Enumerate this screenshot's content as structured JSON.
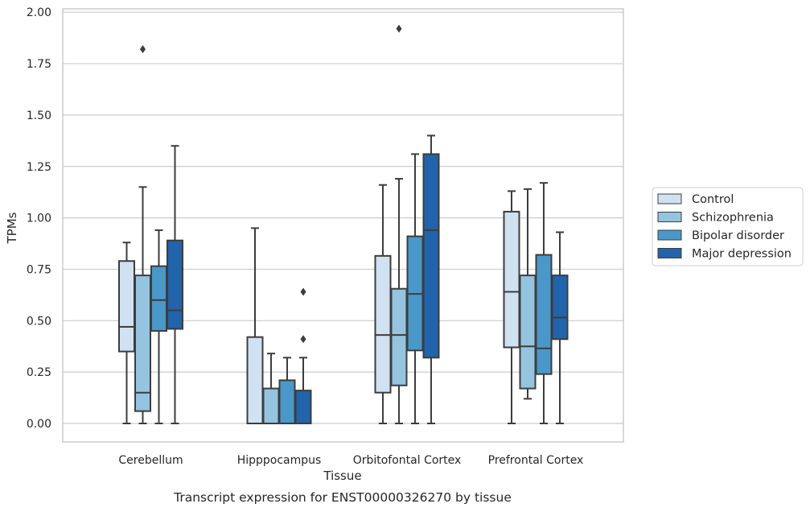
{
  "chart_data": {
    "type": "box",
    "xlabel": "Tissue",
    "ylabel": "TPMs",
    "caption": "Transcript expression for ENST00000326270 by tissue",
    "ylim": [
      -0.09,
      2.02
    ],
    "yticks": [
      "0.00",
      "0.25",
      "0.50",
      "0.75",
      "1.00",
      "1.25",
      "1.50",
      "1.75",
      "2.00"
    ],
    "grid": true,
    "legend_position": "right",
    "categories": [
      "Cerebellum",
      "Hipppocampus",
      "Orbitofontal Cortex",
      "Prefrontal Cortex"
    ],
    "series": [
      {
        "name": "Control",
        "color": "#d0e1f2",
        "boxes": [
          {
            "whislo": 0.0,
            "q1": 0.35,
            "med": 0.47,
            "q3": 0.79,
            "whishi": 0.88,
            "fliers": []
          },
          {
            "whislo": 0.0,
            "q1": 0.0,
            "med": 0.0,
            "q3": 0.42,
            "whishi": 0.95,
            "fliers": []
          },
          {
            "whislo": 0.0,
            "q1": 0.15,
            "med": 0.43,
            "q3": 0.815,
            "whishi": 1.16,
            "fliers": []
          },
          {
            "whislo": 0.0,
            "q1": 0.37,
            "med": 0.64,
            "q3": 1.03,
            "whishi": 1.13,
            "fliers": []
          }
        ]
      },
      {
        "name": "Schizophrenia",
        "color": "#94c4df",
        "boxes": [
          {
            "whislo": 0.0,
            "q1": 0.06,
            "med": 0.15,
            "q3": 0.72,
            "whishi": 1.15,
            "fliers": [
              1.82
            ]
          },
          {
            "whislo": 0.0,
            "q1": 0.0,
            "med": 0.0,
            "q3": 0.17,
            "whishi": 0.34,
            "fliers": []
          },
          {
            "whislo": 0.0,
            "q1": 0.185,
            "med": 0.43,
            "q3": 0.655,
            "whishi": 1.19,
            "fliers": [
              1.92
            ]
          },
          {
            "whislo": 0.12,
            "q1": 0.17,
            "med": 0.375,
            "q3": 0.72,
            "whishi": 1.14,
            "fliers": []
          }
        ]
      },
      {
        "name": "Bipolar disorder",
        "color": "#4a98c9",
        "boxes": [
          {
            "whislo": 0.0,
            "q1": 0.45,
            "med": 0.6,
            "q3": 0.765,
            "whishi": 0.94,
            "fliers": []
          },
          {
            "whislo": 0.0,
            "q1": 0.0,
            "med": 0.0,
            "q3": 0.21,
            "whishi": 0.32,
            "fliers": []
          },
          {
            "whislo": 0.0,
            "q1": 0.355,
            "med": 0.63,
            "q3": 0.91,
            "whishi": 1.31,
            "fliers": []
          },
          {
            "whislo": 0.0,
            "q1": 0.24,
            "med": 0.365,
            "q3": 0.82,
            "whishi": 1.17,
            "fliers": []
          }
        ]
      },
      {
        "name": "Major depression",
        "color": "#2164ab",
        "boxes": [
          {
            "whislo": 0.0,
            "q1": 0.46,
            "med": 0.55,
            "q3": 0.89,
            "whishi": 1.35,
            "fliers": []
          },
          {
            "whislo": 0.0,
            "q1": 0.0,
            "med": 0.0,
            "q3": 0.16,
            "whishi": 0.32,
            "fliers": [
              0.41,
              0.64
            ]
          },
          {
            "whislo": 0.0,
            "q1": 0.32,
            "med": 0.94,
            "q3": 1.31,
            "whishi": 1.4,
            "fliers": []
          },
          {
            "whislo": 0.0,
            "q1": 0.41,
            "med": 0.515,
            "q3": 0.72,
            "whishi": 0.93,
            "fliers": []
          }
        ]
      }
    ]
  }
}
